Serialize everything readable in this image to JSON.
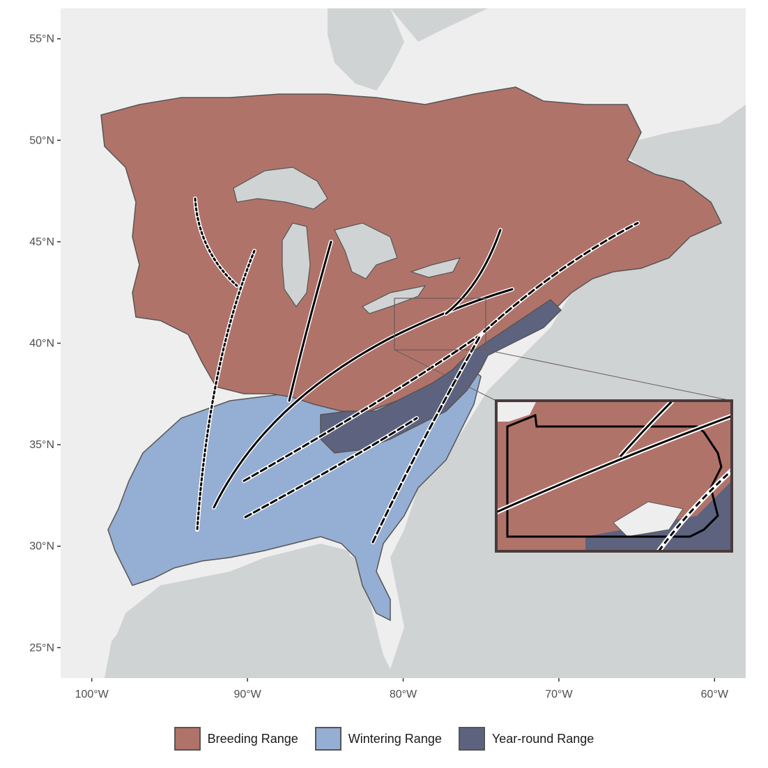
{
  "map": {
    "lat_ticks": [
      {
        "label": "55°N",
        "lat": 55
      },
      {
        "label": "50°N",
        "lat": 50
      },
      {
        "label": "45°N",
        "lat": 45
      },
      {
        "label": "40°N",
        "lat": 40
      },
      {
        "label": "35°N",
        "lat": 35
      },
      {
        "label": "30°N",
        "lat": 30
      },
      {
        "label": "25°N",
        "lat": 25
      }
    ],
    "lon_ticks": [
      {
        "label": "100°W",
        "lon": -100
      },
      {
        "label": "90°W",
        "lon": -90
      },
      {
        "label": "80°W",
        "lon": -80
      },
      {
        "label": "70°W",
        "lon": -70
      },
      {
        "label": "60°W",
        "lon": -60
      }
    ],
    "extent": {
      "lon_min": -102,
      "lon_max": -58,
      "lat_min": 23.5,
      "lat_max": 56.5
    },
    "inset": {
      "region_lon": [
        -80.5,
        -74.7
      ],
      "region_lat": [
        39.7,
        42.3
      ]
    }
  },
  "colors": {
    "breeding": "#b0736a",
    "wintering": "#95aed3",
    "year_round": "#5d637f",
    "water": "#d0d3d4",
    "land": "#eeeeee"
  },
  "legend": {
    "items": [
      {
        "label": "Breeding Range",
        "color": "#b0736a"
      },
      {
        "label": "Wintering Range",
        "color": "#95aed3"
      },
      {
        "label": "Year-round Range",
        "color": "#5d637f"
      }
    ]
  }
}
